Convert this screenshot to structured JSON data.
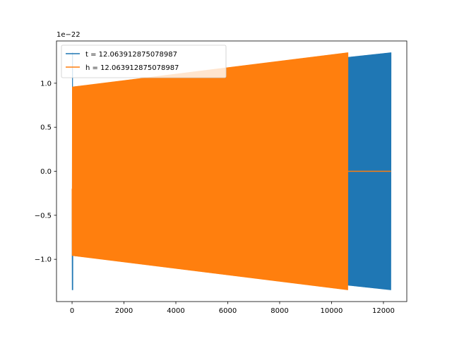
{
  "chart_data": {
    "type": "line",
    "title": "",
    "xlabel": "",
    "ylabel": "",
    "xlim": [
      -600,
      12900
    ],
    "ylim": [
      -1.48,
      1.48
    ],
    "y_offset_text": "1e−22",
    "x_ticks": [
      {
        "value": 0,
        "label": "0"
      },
      {
        "value": 2000,
        "label": "2000"
      },
      {
        "value": 4000,
        "label": "4000"
      },
      {
        "value": 6000,
        "label": "6000"
      },
      {
        "value": 8000,
        "label": "8000"
      },
      {
        "value": 10000,
        "label": "10000"
      },
      {
        "value": 12000,
        "label": "12000"
      }
    ],
    "y_ticks": [
      {
        "value": 1.0,
        "label": "1.0"
      },
      {
        "value": 0.5,
        "label": "0.5"
      },
      {
        "value": 0.0,
        "label": "0.0"
      },
      {
        "value": -0.5,
        "label": "−0.5"
      },
      {
        "value": -1.0,
        "label": "−1.0"
      }
    ],
    "legend": {
      "placement": "top-left"
    },
    "grid": false,
    "series": [
      {
        "name": "t = 12.063912875078987",
        "color": "#1f77b4",
        "kind": "oscillation-envelope",
        "x_start": 0,
        "x_end": 12290,
        "envelope_start": 0.96,
        "envelope_end": 1.35,
        "initial_spike": 1.35
      },
      {
        "name": "h = 12.063912875078987",
        "color": "#ff7f0e",
        "kind": "oscillation-envelope",
        "x_start": 0,
        "x_end": 10630,
        "envelope_start": 0.96,
        "envelope_end": 1.35,
        "flat_after_end_to": 12290,
        "flat_value": 0.0
      }
    ]
  }
}
